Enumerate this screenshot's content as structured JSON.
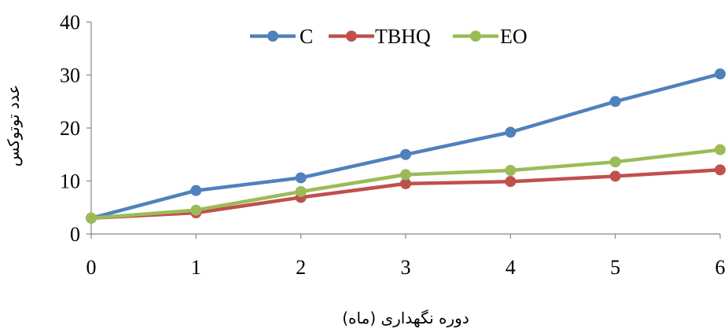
{
  "chart_data": {
    "type": "line",
    "title": "",
    "xlabel": "دوره نگهداری (ماه)",
    "ylabel": "عدد توتوکس",
    "x": [
      0,
      1,
      2,
      3,
      4,
      5,
      6
    ],
    "x_tick_labels": [
      "0",
      "1",
      "2",
      "3",
      "4",
      "5",
      "6"
    ],
    "y_tick_labels": [
      "0",
      "10",
      "20",
      "30",
      "40"
    ],
    "xlim": [
      0,
      6
    ],
    "ylim": [
      0,
      40
    ],
    "grid": false,
    "legend_position": "top",
    "series": [
      {
        "name": "C",
        "color": "#4f81bd",
        "values": [
          3.0,
          8.2,
          10.6,
          15.0,
          19.2,
          25.0,
          30.2
        ]
      },
      {
        "name": "TBHQ",
        "color": "#c0504d",
        "values": [
          3.0,
          4.0,
          6.9,
          9.5,
          9.9,
          10.9,
          12.1
        ]
      },
      {
        "name": "EO",
        "color": "#9bbb59",
        "values": [
          3.0,
          4.5,
          8.0,
          11.2,
          12.0,
          13.6,
          15.9
        ]
      }
    ]
  }
}
